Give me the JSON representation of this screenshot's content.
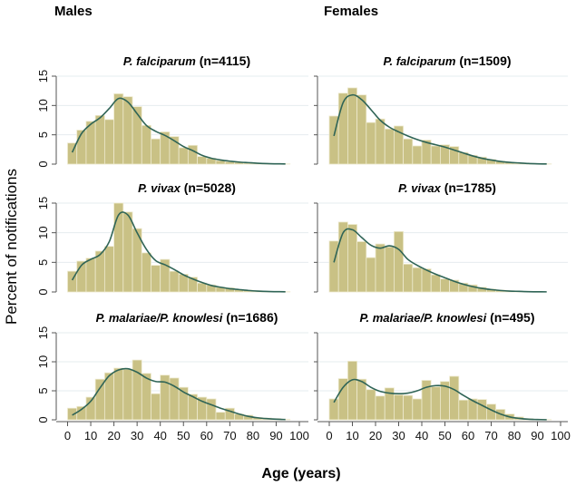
{
  "chart_data": {
    "type": "bar",
    "subtype": "histogram-with-density-curve",
    "xlabel": "Age (years)",
    "ylabel": "Percent of notifications",
    "column_headers": [
      "Males",
      "Females"
    ],
    "bin_width_years": 4,
    "bin_starts": [
      0,
      4,
      8,
      12,
      16,
      20,
      24,
      28,
      32,
      36,
      40,
      44,
      48,
      52,
      56,
      60,
      64,
      68,
      72,
      76,
      80,
      84,
      88,
      92
    ],
    "xlim": [
      0,
      100
    ],
    "xticks": [
      "0",
      "10",
      "20",
      "30",
      "40",
      "50",
      "60",
      "70",
      "80",
      "90",
      "100"
    ],
    "ylim": [
      0,
      15
    ],
    "yticks": [
      "0",
      "5",
      "10",
      "15"
    ],
    "grid": true,
    "colors": {
      "bar": "#c9c185",
      "bar_edge": "#eeeacf",
      "curve": "#2f6456",
      "grid": "#e6ecef",
      "axis": "#555555"
    },
    "panels": [
      {
        "id": "m-fal",
        "column": "Males",
        "species": "P. falciparum",
        "n_label": "(n=4115)",
        "values": [
          3.6,
          5.8,
          7.3,
          8.3,
          7.6,
          12.0,
          11.5,
          9.8,
          6.6,
          4.3,
          5.5,
          4.7,
          2.8,
          3.2,
          1.3,
          1.0,
          0.6,
          0.4,
          0.3,
          0.2,
          0.15,
          0.1,
          0.05,
          0.05
        ],
        "density": [
          2.0,
          5.2,
          6.8,
          7.9,
          9.5,
          11.2,
          10.6,
          8.6,
          6.6,
          5.6,
          4.9,
          4.0,
          3.0,
          2.3,
          1.5,
          1.0,
          0.7,
          0.5,
          0.35,
          0.25,
          0.15,
          0.08,
          0.05,
          0.03
        ]
      },
      {
        "id": "f-fal",
        "column": "Females",
        "species": "P. falciparum",
        "n_label": "(n=1509)",
        "values": [
          8.2,
          12.1,
          13.0,
          11.8,
          7.1,
          7.7,
          6.0,
          6.5,
          4.3,
          3.1,
          4.1,
          3.1,
          3.3,
          3.0,
          2.0,
          1.5,
          1.2,
          0.8,
          0.5,
          0.3,
          0.2,
          0.1,
          0.05,
          0.05
        ],
        "density": [
          4.8,
          10.5,
          11.8,
          11.0,
          9.3,
          7.5,
          6.3,
          5.5,
          4.8,
          4.2,
          3.7,
          3.3,
          2.9,
          2.4,
          1.9,
          1.4,
          1.0,
          0.7,
          0.45,
          0.3,
          0.2,
          0.1,
          0.05,
          0.03
        ]
      },
      {
        "id": "m-viv",
        "column": "Males",
        "species": "P. vivax",
        "n_label": "(n=5028)",
        "values": [
          3.5,
          5.2,
          5.7,
          6.9,
          7.7,
          15.0,
          13.5,
          10.7,
          6.6,
          4.5,
          5.5,
          3.5,
          3.0,
          2.5,
          1.5,
          1.2,
          0.8,
          0.7,
          0.4,
          0.3,
          0.2,
          0.1,
          0.05,
          0.05
        ],
        "density": [
          2.0,
          4.5,
          5.5,
          6.3,
          8.5,
          13.0,
          13.0,
          10.0,
          7.2,
          5.3,
          4.6,
          3.8,
          2.9,
          2.2,
          1.6,
          1.1,
          0.8,
          0.55,
          0.4,
          0.25,
          0.15,
          0.08,
          0.05,
          0.03
        ]
      },
      {
        "id": "f-viv",
        "column": "Females",
        "species": "P. vivax",
        "n_label": "(n=1785)",
        "values": [
          8.6,
          11.8,
          11.4,
          8.5,
          5.8,
          8.1,
          7.6,
          10.2,
          4.7,
          4.1,
          3.9,
          2.9,
          2.2,
          2.0,
          1.5,
          1.2,
          0.8,
          0.5,
          0.3,
          0.2,
          0.1,
          0.05,
          0.05,
          0.0
        ],
        "density": [
          5.0,
          10.0,
          10.5,
          9.2,
          7.9,
          7.4,
          7.8,
          7.2,
          5.5,
          4.5,
          3.7,
          3.0,
          2.4,
          1.8,
          1.3,
          0.9,
          0.6,
          0.4,
          0.25,
          0.15,
          0.1,
          0.05,
          0.03,
          0.02
        ]
      },
      {
        "id": "m-mal",
        "column": "Males",
        "species": "P. malariae/P. knowlesi",
        "n_label": "(n=1686)",
        "values": [
          2.0,
          2.3,
          3.9,
          7.0,
          8.1,
          8.9,
          8.7,
          10.3,
          8.0,
          4.5,
          7.7,
          7.2,
          5.6,
          4.4,
          3.9,
          3.6,
          1.3,
          2.0,
          1.0,
          0.8,
          0.4,
          0.3,
          0.2,
          0.1
        ],
        "density": [
          0.8,
          1.8,
          3.2,
          5.5,
          7.6,
          8.6,
          8.8,
          8.2,
          7.2,
          6.6,
          6.5,
          5.8,
          4.8,
          4.0,
          3.2,
          2.6,
          2.0,
          1.5,
          1.0,
          0.6,
          0.35,
          0.2,
          0.1,
          0.05
        ]
      },
      {
        "id": "f-mal",
        "column": "Females",
        "species": "P. malariae/P. knowlesi",
        "n_label": "(n=495)",
        "values": [
          3.6,
          7.1,
          10.1,
          7.0,
          5.2,
          4.1,
          5.5,
          4.3,
          4.2,
          3.6,
          6.8,
          5.7,
          6.6,
          7.5,
          3.4,
          3.6,
          3.5,
          2.7,
          1.8,
          1.0,
          0.5,
          0.2,
          0.1,
          0.05
        ],
        "density": [
          3.0,
          5.6,
          6.9,
          6.6,
          5.6,
          4.9,
          4.6,
          4.5,
          4.6,
          5.0,
          5.6,
          5.9,
          5.8,
          5.2,
          4.2,
          3.3,
          2.5,
          1.7,
          1.0,
          0.5,
          0.25,
          0.1,
          0.05,
          0.02
        ]
      }
    ]
  }
}
